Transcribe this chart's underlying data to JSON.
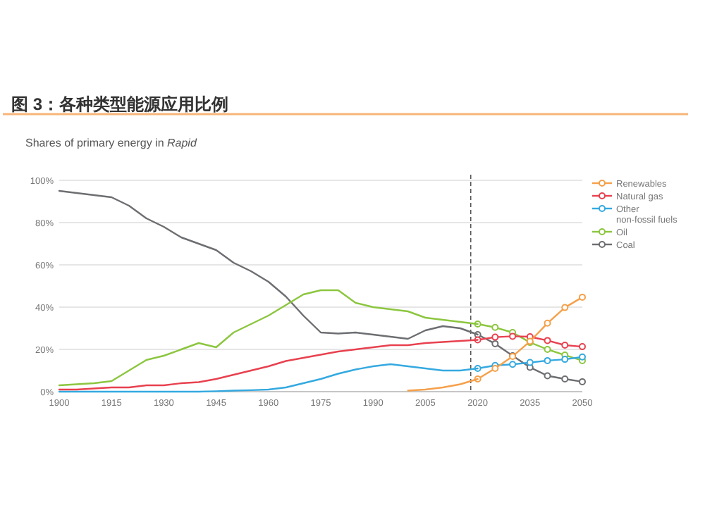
{
  "chart_data": {
    "type": "line",
    "title": "图 3：各种类型能源应用比例",
    "subtitle": "Shares of primary energy in *Rapid*",
    "x": [
      1900,
      1905,
      1910,
      1915,
      1920,
      1925,
      1930,
      1935,
      1940,
      1945,
      1950,
      1955,
      1960,
      1965,
      1970,
      1975,
      1980,
      1985,
      1990,
      1995,
      2000,
      2005,
      2010,
      2015,
      2020
    ],
    "series": [
      {
        "color": "#f5a04a",
        "marker": "none",
        "x": [
          2000,
          2005,
          2010,
          2015,
          2020
        ],
        "values": [
          0.5,
          1,
          2,
          3.5,
          6
        ]
      },
      {
        "color": "#e8414f",
        "marker": "none",
        "values": [
          1,
          1,
          1.5,
          2,
          2,
          3,
          3,
          4,
          4.5,
          6,
          8,
          10,
          12,
          14.5,
          16,
          17.5,
          19,
          20,
          21,
          22,
          22,
          23,
          23.5,
          24,
          24.5
        ]
      },
      {
        "color": "#34a9e0",
        "marker": "none",
        "values": [
          0,
          0,
          0,
          0,
          0,
          0,
          0,
          0,
          0,
          0.2,
          0.5,
          0.7,
          1,
          2,
          4,
          6,
          8.5,
          10.5,
          12,
          13,
          12,
          11,
          10,
          10,
          11
        ]
      },
      {
        "color": "#8cc63f",
        "marker": "none",
        "values": [
          3,
          3.5,
          4,
          5,
          10,
          15,
          17,
          20,
          23,
          21,
          28,
          32,
          36,
          41,
          46,
          48,
          48,
          42,
          40,
          39,
          38,
          35,
          34,
          33,
          32
        ]
      },
      {
        "color": "#6d6e71",
        "marker": "none",
        "values": [
          95,
          94,
          93,
          92,
          88,
          82,
          78,
          73,
          70,
          67,
          61,
          57,
          52,
          45,
          36,
          28,
          27.5,
          28,
          27,
          26,
          25,
          29,
          31,
          30,
          27
        ]
      },
      {
        "name": "Renewables",
        "color": "#f5a04a",
        "marker": "circle",
        "x": [
          2020,
          2025,
          2030,
          2035,
          2040,
          2045,
          2050
        ],
        "values": [
          6,
          11,
          16.7,
          23.8,
          32.4,
          39.8,
          44.7
        ]
      },
      {
        "name": "Natural gas",
        "color": "#e8414f",
        "marker": "circle",
        "x": [
          2020,
          2025,
          2030,
          2035,
          2040,
          2045,
          2050
        ],
        "values": [
          24.5,
          25.8,
          26.2,
          26,
          24.2,
          22,
          21.3
        ]
      },
      {
        "name": "Other\nnon-fossil fuels",
        "color": "#34a9e0",
        "marker": "circle",
        "x": [
          2020,
          2025,
          2030,
          2035,
          2040,
          2045,
          2050
        ],
        "values": [
          11,
          12.4,
          12.9,
          13.8,
          14.7,
          15.3,
          16.4
        ]
      },
      {
        "name": "Oil",
        "color": "#8cc63f",
        "marker": "circle",
        "x": [
          2020,
          2025,
          2030,
          2035,
          2040,
          2045,
          2050
        ],
        "values": [
          32,
          30.4,
          28,
          23.3,
          20,
          17.3,
          14.7
        ]
      },
      {
        "name": "Coal",
        "color": "#6d6e71",
        "marker": "circle",
        "x": [
          2020,
          2025,
          2030,
          2035,
          2040,
          2045,
          2050
        ],
        "values": [
          27,
          22.7,
          17,
          11.5,
          7.5,
          6,
          4.7
        ]
      }
    ],
    "xlim": [
      1900,
      2050
    ],
    "xticks": [
      1900,
      1915,
      1930,
      1945,
      1960,
      1975,
      1990,
      2005,
      2020,
      2035,
      2050
    ],
    "ylim": [
      0,
      100
    ],
    "yticks": [
      {
        "value": 0,
        "label": "0%"
      },
      {
        "value": 20,
        "label": "20%"
      },
      {
        "value": 40,
        "label": "40%"
      },
      {
        "value": 60,
        "label": "60%"
      },
      {
        "value": 80,
        "label": "80%"
      },
      {
        "value": 100,
        "label": "100%"
      }
    ],
    "ref_lines": [
      {
        "axis": "x",
        "value": 2018,
        "line_style": "dashed",
        "color": "#555555"
      }
    ],
    "grid": "y",
    "legend": "right",
    "line_style": "solid"
  }
}
